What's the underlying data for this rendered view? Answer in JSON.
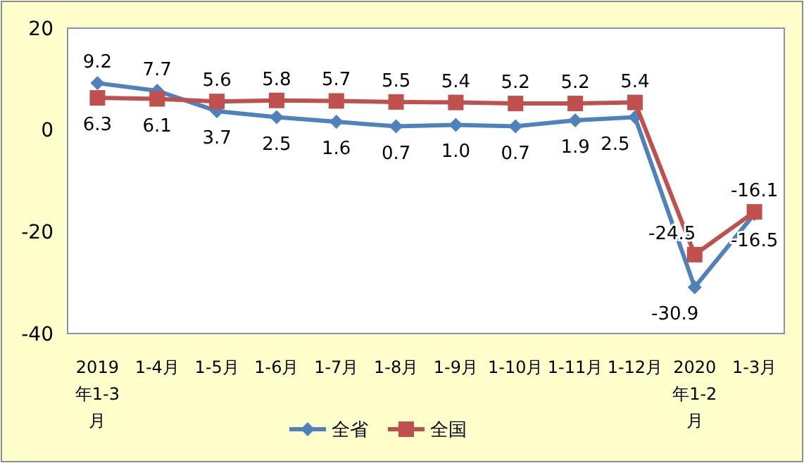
{
  "chart_data": {
    "type": "line",
    "categories": [
      "2019年1-3月",
      "1-4月",
      "1-5月",
      "1-6月",
      "1-7月",
      "1-8月",
      "1-9月",
      "1-10月",
      "1-11月",
      "1-12月",
      "2020年1-2月",
      "1-3月"
    ],
    "series": [
      {
        "name": "全省",
        "color": "#4f81bd",
        "marker": "diamond",
        "values": [
          9.2,
          7.7,
          3.7,
          2.5,
          1.6,
          0.7,
          1.0,
          0.7,
          1.9,
          2.5,
          -30.9,
          -16.5
        ],
        "value_labels": [
          "9.2",
          "7.7",
          "3.7",
          "2.5",
          "1.6",
          "0.7",
          "1.0",
          "0.7",
          "1.9",
          "2.5",
          "-30.9",
          "-16.5"
        ]
      },
      {
        "name": "全国",
        "color": "#c0504d",
        "marker": "square",
        "values": [
          6.3,
          6.1,
          5.6,
          5.8,
          5.7,
          5.5,
          5.4,
          5.2,
          5.2,
          5.4,
          -24.5,
          -16.1
        ],
        "value_labels": [
          "6.3",
          "6.1",
          "5.6",
          "5.8",
          "5.7",
          "5.5",
          "5.4",
          "5.2",
          "5.2",
          "5.4",
          "-24.5",
          "-16.1"
        ]
      }
    ],
    "ylim": [
      -40,
      20
    ],
    "yticks": [
      -40,
      -20,
      0,
      20
    ],
    "grid": false,
    "legend": "bottom"
  }
}
